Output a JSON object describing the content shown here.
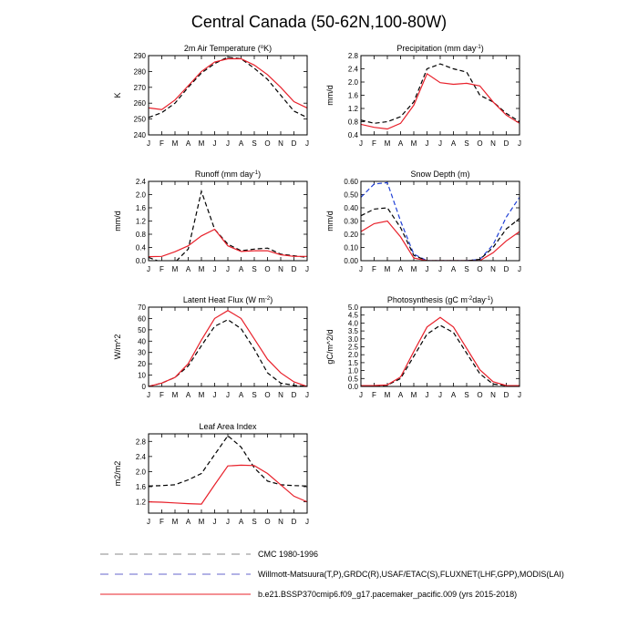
{
  "title": "Central Canada (50-62N,100-80W)",
  "months": [
    "J",
    "F",
    "M",
    "A",
    "M",
    "J",
    "J",
    "A",
    "S",
    "O",
    "N",
    "D",
    "J"
  ],
  "colors": {
    "cmc": "#000000",
    "obs": "#1f3fd6",
    "model": "#e8202a"
  },
  "legend": [
    {
      "label": "CMC 1980-1996",
      "color": "#888888",
      "dash": "dashed"
    },
    {
      "label": "Willmott-Matsuura(T,P),GRDC(R),USAF/ETAC(S),FLUXNET(LHF,GPP),MODIS(LAI)",
      "color": "#6666cc",
      "dash": "dashed"
    },
    {
      "label": "b.e21.BSSP370cmip6.f09_g17.pacemaker_pacific.009 (yrs 2015-2018)",
      "color": "#e8202a",
      "dash": "solid"
    }
  ],
  "chart_data": [
    {
      "type": "line",
      "title": "2m Air Temperature (",
      "title_sup": "o",
      "title_post": "K)",
      "ylabel": "K",
      "ylim": [
        240,
        290
      ],
      "yticks": [
        "240",
        "250",
        "260",
        "270",
        "280",
        "290"
      ],
      "series": [
        {
          "id": "cmc",
          "values": [
            251,
            254,
            260,
            270,
            279,
            285,
            289,
            288,
            282,
            275,
            265,
            255,
            251
          ]
        },
        {
          "id": "model",
          "values": [
            257,
            256,
            262,
            271,
            280,
            286,
            288,
            288,
            284,
            278,
            270,
            261,
            257
          ]
        }
      ]
    },
    {
      "type": "line",
      "title": "Precipitation (mm day",
      "title_sup": "-1",
      "title_post": ")",
      "ylabel": "mm/d",
      "ylim": [
        0.4,
        2.8
      ],
      "yticks": [
        "0.4",
        "0.8",
        "1.2",
        "1.6",
        "2.0",
        "2.4",
        "2.8"
      ],
      "series": [
        {
          "id": "cmc",
          "values": [
            0.85,
            0.75,
            0.8,
            0.95,
            1.4,
            2.4,
            2.55,
            2.4,
            2.3,
            1.6,
            1.4,
            1.05,
            0.8
          ]
        },
        {
          "id": "model",
          "values": [
            0.72,
            0.63,
            0.58,
            0.75,
            1.3,
            2.25,
            1.98,
            1.93,
            1.96,
            1.88,
            1.4,
            1.0,
            0.75
          ]
        }
      ]
    },
    {
      "type": "line",
      "title": "Runoff (mm day",
      "title_sup": "-1",
      "title_post": ")",
      "ylabel": "mm/d",
      "ylim": [
        0,
        2.4
      ],
      "yticks": [
        "0.0",
        "0.4",
        "0.8",
        "1.2",
        "1.6",
        "2.0",
        "2.4"
      ],
      "series": [
        {
          "id": "cmc",
          "values": [
            0.1,
            -0.05,
            -0.05,
            0.35,
            2.1,
            0.95,
            0.5,
            0.3,
            0.35,
            0.38,
            0.2,
            0.15,
            0.1
          ]
        },
        {
          "id": "model",
          "values": [
            0.12,
            0.13,
            0.27,
            0.45,
            0.75,
            0.95,
            0.45,
            0.28,
            0.3,
            0.3,
            0.18,
            0.13,
            0.13
          ]
        }
      ]
    },
    {
      "type": "line",
      "title": "Snow Depth (m)",
      "title_sup": "",
      "title_post": "",
      "ylabel": "mm/d",
      "ylim": [
        0,
        0.6
      ],
      "yticks": [
        "0.00",
        "0.10",
        "0.20",
        "0.30",
        "0.40",
        "0.50",
        "0.60"
      ],
      "series": [
        {
          "id": "obs",
          "values": [
            0.48,
            0.58,
            0.59,
            0.3,
            0.05,
            0.0,
            0.0,
            0.0,
            0.0,
            0.01,
            0.12,
            0.33,
            0.48
          ]
        },
        {
          "id": "cmc",
          "values": [
            0.34,
            0.39,
            0.4,
            0.25,
            0.04,
            0.0,
            0.0,
            0.0,
            0.0,
            0.01,
            0.1,
            0.24,
            0.32
          ]
        },
        {
          "id": "model",
          "values": [
            0.22,
            0.28,
            0.3,
            0.18,
            0.02,
            0.0,
            0.0,
            0.0,
            0.0,
            0.0,
            0.06,
            0.15,
            0.22
          ]
        }
      ]
    },
    {
      "type": "line",
      "title": "Latent Heat Flux (W m",
      "title_sup": "-2",
      "title_post": ")",
      "ylabel": "W/m^2",
      "ylim": [
        0,
        70
      ],
      "yticks": [
        "0",
        "10",
        "20",
        "30",
        "40",
        "50",
        "60",
        "70"
      ],
      "series": [
        {
          "id": "cmc",
          "values": [
            0,
            3,
            8,
            18,
            36,
            53,
            59,
            51,
            33,
            12,
            3,
            1,
            0
          ]
        },
        {
          "id": "model",
          "values": [
            0,
            3,
            8,
            20,
            41,
            60,
            67,
            60,
            42,
            24,
            12,
            4,
            0
          ]
        }
      ]
    },
    {
      "type": "line",
      "title": "Photosynthesis (gC m",
      "title_sup": "-2",
      "title_post": "day",
      "title_sup2": "-1",
      "title_post2": ")",
      "ylabel": "gC/m^2/d",
      "ylim": [
        0,
        5
      ],
      "yticks": [
        "0.0",
        "0.5",
        "1.0",
        "1.5",
        "2.0",
        "2.5",
        "3.0",
        "3.5",
        "4.0",
        "4.5",
        "5.0"
      ],
      "series": [
        {
          "id": "cmc",
          "values": [
            0.02,
            0.04,
            0.08,
            0.5,
            1.9,
            3.3,
            3.85,
            3.4,
            2.1,
            0.8,
            0.15,
            0.05,
            0.02
          ]
        },
        {
          "id": "model",
          "values": [
            0.05,
            0.06,
            0.1,
            0.6,
            2.2,
            3.75,
            4.35,
            3.75,
            2.4,
            1.05,
            0.3,
            0.06,
            0.05
          ]
        }
      ]
    },
    {
      "type": "line",
      "title": "Leaf Area Index",
      "title_sup": "",
      "title_post": "",
      "ylabel": "m2/m2",
      "ylim": [
        0.9,
        3.0
      ],
      "yticks": [
        "1.2",
        "1.6",
        "2.0",
        "2.4",
        "2.8"
      ],
      "series": [
        {
          "id": "cmc",
          "values": [
            1.62,
            1.63,
            1.65,
            1.78,
            1.95,
            2.45,
            2.95,
            2.65,
            2.1,
            1.75,
            1.65,
            1.63,
            1.62
          ]
        },
        {
          "id": "model",
          "values": [
            1.2,
            1.19,
            1.17,
            1.15,
            1.14,
            1.65,
            2.15,
            2.17,
            2.16,
            1.95,
            1.65,
            1.35,
            1.2
          ]
        }
      ]
    }
  ]
}
